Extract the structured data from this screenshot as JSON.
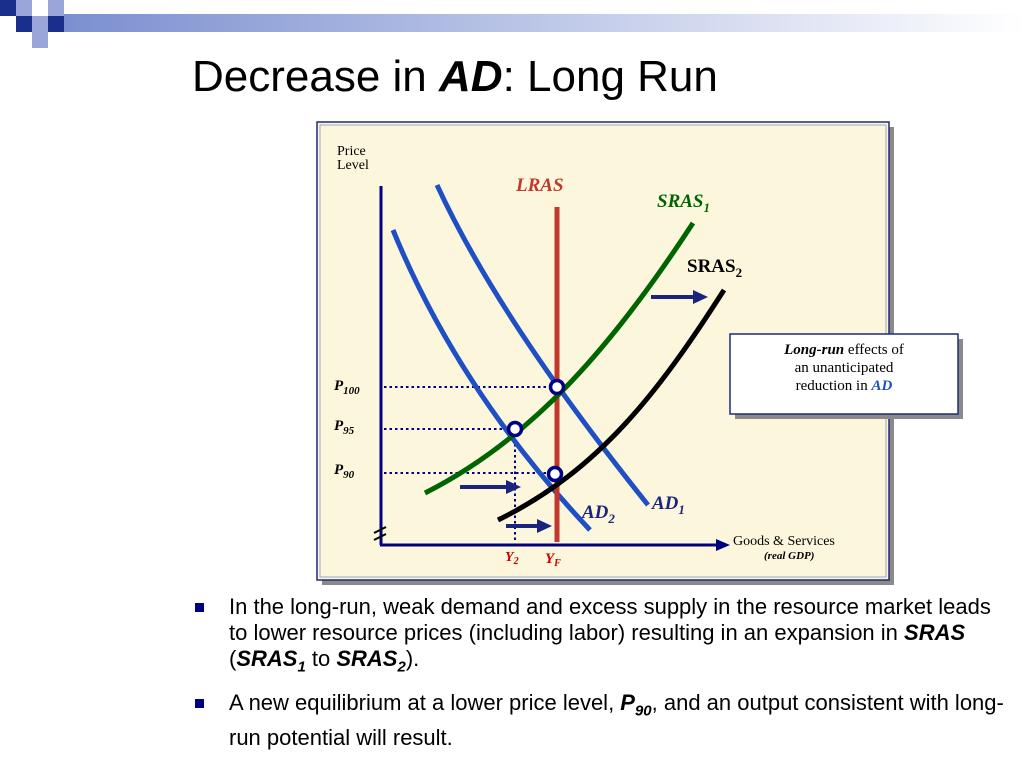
{
  "slide": {
    "title_prefix": "Decrease in ",
    "title_em": "AD",
    "title_suffix": ":  Long Run"
  },
  "diagram": {
    "y_axis_label_line1": "Price",
    "y_axis_label_line2": "Level",
    "x_axis_label": "Goods & Services",
    "x_axis_sublabel": "(real GDP)",
    "curves": {
      "lras": "LRAS",
      "sras1": "SRAS",
      "sras1_sub": "1",
      "sras2": "SRAS",
      "sras2_sub": "2",
      "ad1": "AD",
      "ad1_sub": "1",
      "ad2": "AD",
      "ad2_sub": "2"
    },
    "price_levels": [
      {
        "label": "P",
        "sub": "100"
      },
      {
        "label": "P",
        "sub": "95"
      },
      {
        "label": "P",
        "sub": "90"
      }
    ],
    "outputs": [
      {
        "label": "Y",
        "sub": "2"
      },
      {
        "label": "Y",
        "sub": "F"
      }
    ],
    "callout": {
      "line1_em": "Long-run",
      "line1_rest": " effects of",
      "line2": "an unanticipated",
      "line3_prefix": "reduction in ",
      "line3_em": "AD"
    },
    "colors": {
      "lras": "#C0392B",
      "sras1": "#006400",
      "sras2": "#000000",
      "ad": "#1F4FC4",
      "axis": "#000080",
      "panel": "#FBF6DC",
      "y_labels": "#CC0000"
    }
  },
  "bullets": [
    {
      "t1": "In the long-run, weak demand and excess supply in the resource market leads to lower resource prices (including labor) resulting in an expansion in ",
      "b1": "SRAS",
      "t2": " (",
      "b2": "SRAS",
      "b2_sub": "1",
      "t3": " to ",
      "b3": "SRAS",
      "b3_sub": "2",
      "t4": ")."
    },
    {
      "t1": "A new equilibrium at a lower price level, ",
      "b1": "P",
      "b1_sub": "90",
      "t2": ", and an output consistent with long-run potential will result."
    }
  ]
}
